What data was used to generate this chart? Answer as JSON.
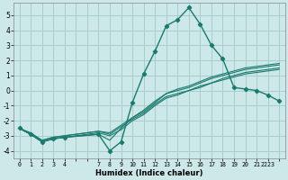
{
  "xlabel": "Humidex (Indice chaleur)",
  "background_color": "#cce8e8",
  "grid_color": "#aacccc",
  "line_color": "#1a7a6e",
  "xlim": [
    -0.5,
    23.5
  ],
  "ylim": [
    -4.5,
    5.8
  ],
  "xticks": [
    0,
    1,
    2,
    3,
    4,
    5,
    6,
    7,
    8,
    9,
    10,
    11,
    12,
    13,
    14,
    15,
    16,
    17,
    18,
    19,
    20,
    21,
    22,
    23
  ],
  "xtick_labels": [
    "0",
    "1",
    "2",
    "3",
    "4",
    "",
    "",
    "7",
    "8",
    "9",
    "10",
    "11",
    "12",
    "13",
    "14",
    "15",
    "16",
    "17",
    "18",
    "19",
    "20",
    "21",
    "2223",
    ""
  ],
  "yticks": [
    -4,
    -3,
    -2,
    -1,
    0,
    1,
    2,
    3,
    4,
    5
  ],
  "curve1_x": [
    0,
    1,
    2,
    3,
    4,
    7,
    8,
    9,
    10,
    11,
    12,
    13,
    14,
    15,
    16,
    17,
    18,
    19,
    20,
    21,
    22,
    23
  ],
  "curve1_y": [
    -2.5,
    -2.9,
    -3.4,
    -3.2,
    -3.1,
    -2.9,
    -4.0,
    -3.4,
    -0.8,
    1.1,
    2.6,
    4.3,
    4.7,
    5.5,
    4.4,
    3.0,
    2.1,
    0.2,
    0.1,
    0.0,
    -0.3,
    -0.7
  ],
  "curve2_x": [
    0,
    1,
    2,
    3,
    4,
    7,
    8,
    9,
    10,
    11,
    12,
    13,
    14,
    15,
    16,
    17,
    18,
    19,
    20,
    21,
    22,
    23
  ],
  "curve2_y": [
    -2.5,
    -2.9,
    -3.4,
    -3.2,
    -3.1,
    -2.9,
    -3.3,
    -2.5,
    -1.8,
    -1.4,
    -0.8,
    -0.2,
    0.0,
    0.2,
    0.5,
    0.8,
    1.0,
    1.2,
    1.4,
    1.5,
    1.6,
    1.7
  ],
  "curve3_x": [
    0,
    1,
    2,
    3,
    4,
    7,
    8,
    9,
    10,
    11,
    12,
    13,
    14,
    15,
    16,
    17,
    18,
    19,
    20,
    21,
    22,
    23
  ],
  "curve3_y": [
    -2.5,
    -2.9,
    -3.3,
    -3.1,
    -3.0,
    -2.7,
    -2.9,
    -2.4,
    -1.9,
    -1.5,
    -0.9,
    -0.4,
    -0.2,
    0.0,
    0.3,
    0.5,
    0.8,
    1.0,
    1.2,
    1.3,
    1.4,
    1.5
  ],
  "curve4_x": [
    0,
    1,
    2,
    3,
    4,
    7,
    8,
    9,
    10,
    11,
    12,
    13,
    14,
    15,
    16,
    17,
    18,
    19,
    20,
    21,
    22,
    23
  ],
  "curve4_y": [
    -2.5,
    -2.8,
    -3.3,
    -3.1,
    -3.0,
    -2.7,
    -2.8,
    -2.3,
    -1.8,
    -1.3,
    -0.7,
    -0.2,
    0.1,
    0.3,
    0.6,
    0.9,
    1.1,
    1.3,
    1.5,
    1.6,
    1.7,
    1.8
  ],
  "curve5_x": [
    0,
    1,
    2,
    3,
    4,
    7,
    8,
    9,
    10,
    11,
    12,
    13,
    14,
    15,
    16,
    17,
    18,
    19,
    20,
    21,
    22,
    23
  ],
  "curve5_y": [
    -2.5,
    -2.9,
    -3.4,
    -3.2,
    -3.1,
    -2.8,
    -3.0,
    -2.6,
    -2.0,
    -1.6,
    -1.0,
    -0.5,
    -0.3,
    0.0,
    0.2,
    0.5,
    0.7,
    0.9,
    1.1,
    1.2,
    1.3,
    1.4
  ]
}
